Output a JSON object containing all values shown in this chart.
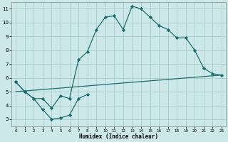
{
  "xlabel": "Humidex (Indice chaleur)",
  "bg_color": "#cce8e8",
  "grid_color": "#aacccc",
  "line_color": "#1a6e6e",
  "line1_x": [
    0,
    1,
    2,
    3,
    4,
    5,
    6,
    7,
    8,
    9,
    10,
    11,
    12,
    13,
    14,
    15,
    16,
    17,
    18,
    19,
    20,
    21,
    22,
    23
  ],
  "line1_y": [
    5.7,
    5.0,
    4.5,
    4.5,
    3.8,
    4.7,
    4.5,
    7.3,
    7.9,
    9.5,
    10.4,
    10.5,
    9.5,
    11.2,
    11.0,
    10.4,
    9.8,
    9.5,
    8.9,
    8.9,
    8.0,
    6.7,
    6.3,
    6.2
  ],
  "line2_x": [
    0,
    1,
    2,
    3,
    4,
    5,
    6,
    7,
    8
  ],
  "line2_y": [
    5.7,
    5.0,
    4.5,
    3.7,
    3.0,
    3.1,
    3.3,
    4.5,
    4.8
  ],
  "line3_x": [
    0,
    23
  ],
  "line3_y": [
    5.0,
    6.2
  ],
  "ylim": [
    2.5,
    11.5
  ],
  "xlim": [
    -0.5,
    23.5
  ],
  "yticks": [
    3,
    4,
    5,
    6,
    7,
    8,
    9,
    10,
    11
  ],
  "xticks": [
    0,
    1,
    2,
    3,
    4,
    5,
    6,
    7,
    8,
    9,
    10,
    11,
    12,
    13,
    14,
    15,
    16,
    17,
    18,
    19,
    20,
    21,
    22,
    23
  ]
}
